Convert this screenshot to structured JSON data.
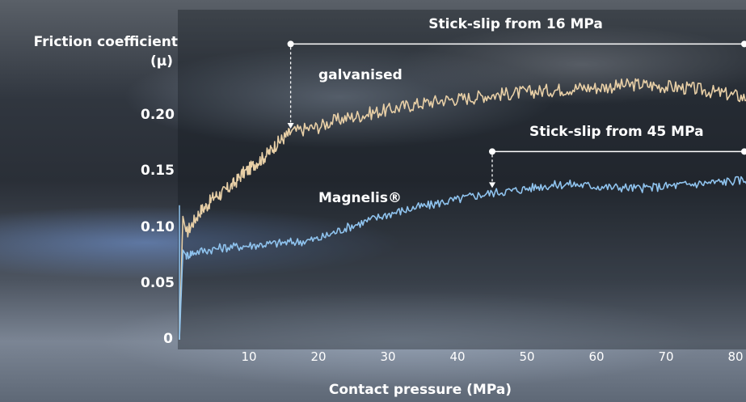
{
  "chart_data": {
    "type": "line",
    "ylabel_line1": "Friction coefficient",
    "ylabel_line2": "(µ)",
    "xlabel": "Contact pressure (MPa)",
    "ylim": [
      0,
      0.25
    ],
    "xlim": [
      0,
      86
    ],
    "yticks": [
      "0",
      "0.05",
      "0.10",
      "0.15",
      "0.20"
    ],
    "ytick_values": [
      0,
      0.05,
      0.1,
      0.15,
      0.2
    ],
    "xticks": [
      "10",
      "20",
      "30",
      "40",
      "50",
      "60",
      "70",
      "80"
    ],
    "xtick_values": [
      10,
      20,
      30,
      40,
      50,
      60,
      70,
      80
    ],
    "series": [
      {
        "name": "galvanised",
        "color": "#e8cfa6",
        "x": [
          0,
          0.5,
          1,
          2,
          3,
          4,
          5,
          6,
          7,
          8,
          9,
          10,
          11,
          12,
          13,
          14,
          15,
          16,
          18,
          20,
          22,
          24,
          26,
          28,
          30,
          32,
          34,
          36,
          38,
          40,
          42,
          44,
          46,
          48,
          50,
          52,
          54,
          56,
          58,
          60,
          62,
          64,
          66,
          68,
          70,
          72,
          74,
          76,
          78,
          80,
          82,
          84,
          86
        ],
        "y": [
          0.0,
          0.11,
          0.095,
          0.105,
          0.115,
          0.12,
          0.128,
          0.13,
          0.135,
          0.14,
          0.148,
          0.152,
          0.158,
          0.162,
          0.168,
          0.175,
          0.18,
          0.185,
          0.188,
          0.19,
          0.195,
          0.198,
          0.2,
          0.203,
          0.205,
          0.208,
          0.21,
          0.212,
          0.214,
          0.215,
          0.216,
          0.218,
          0.219,
          0.22,
          0.221,
          0.222,
          0.223,
          0.224,
          0.225,
          0.225,
          0.226,
          0.227,
          0.228,
          0.227,
          0.226,
          0.225,
          0.224,
          0.222,
          0.22,
          0.218,
          0.215,
          0.21,
          0.2
        ]
      },
      {
        "name": "Magnelis®",
        "color": "#8fc3ee",
        "x": [
          0,
          0.5,
          1,
          2,
          4,
          6,
          8,
          10,
          12,
          14,
          16,
          18,
          20,
          22,
          24,
          26,
          28,
          30,
          32,
          34,
          36,
          38,
          40,
          42,
          44,
          46,
          48,
          50,
          52,
          54,
          56,
          58,
          60,
          62,
          64,
          66,
          68,
          70,
          72,
          74,
          76,
          78,
          80,
          82,
          84,
          86
        ],
        "y": [
          0.0,
          0.08,
          0.075,
          0.078,
          0.08,
          0.082,
          0.083,
          0.084,
          0.085,
          0.086,
          0.087,
          0.088,
          0.09,
          0.095,
          0.1,
          0.104,
          0.108,
          0.112,
          0.115,
          0.118,
          0.12,
          0.123,
          0.125,
          0.128,
          0.13,
          0.132,
          0.133,
          0.135,
          0.137,
          0.138,
          0.139,
          0.138,
          0.137,
          0.136,
          0.136,
          0.135,
          0.136,
          0.137,
          0.138,
          0.139,
          0.14,
          0.141,
          0.142,
          0.143,
          0.144,
          0.145
        ]
      }
    ],
    "annotations": [
      {
        "text": "Stick-slip from 16 MPa",
        "x_start": 16,
        "x_end": 86,
        "y_line": 0.264,
        "y_target": 0.187
      },
      {
        "text": "Stick-slip from 45 MPa",
        "x_start": 45,
        "x_end": 86,
        "y_line": 0.168,
        "y_target": 0.134
      }
    ],
    "series_labels": [
      {
        "text": "galvanised",
        "x": 20,
        "y": 0.235
      },
      {
        "text": "Magnelis®",
        "x": 20,
        "y": 0.125
      }
    ]
  }
}
